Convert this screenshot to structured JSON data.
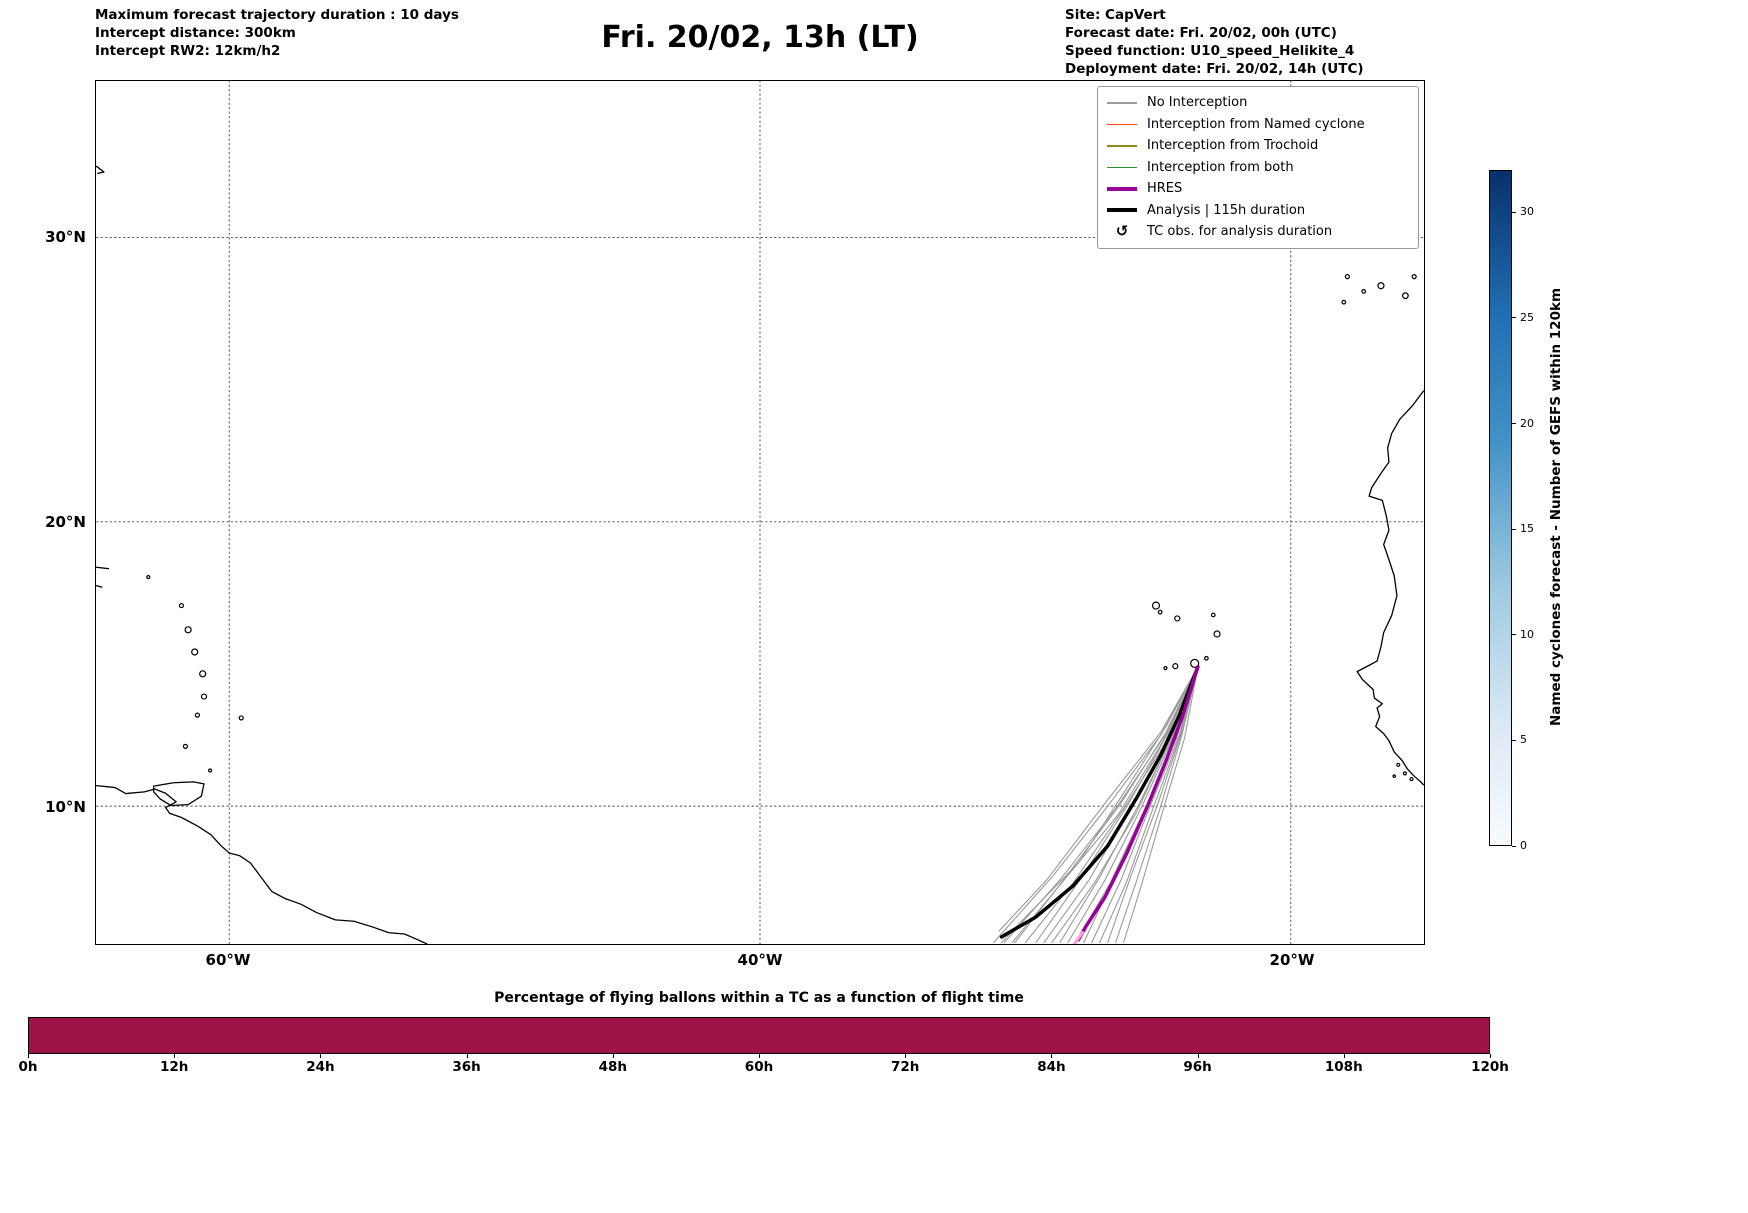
{
  "header": {
    "left_lines": [
      "Maximum forecast trajectory duration : 10 days",
      "Intercept distance: 300km",
      "Intercept RW2: 12km/h2"
    ],
    "title": "Fri. 20/02, 13h (LT)",
    "right_lines": [
      "Site: CapVert",
      "Forecast date: Fri. 20/02, 00h (UTC)",
      "Speed function: U10_speed_Helikite_4",
      "Deployment date: Fri. 20/02, 14h (UTC)"
    ]
  },
  "map": {
    "lat_labels": [
      "30°N",
      "20°N",
      "10°N"
    ],
    "lon_labels": [
      "60°W",
      "40°W",
      "20°W"
    ],
    "legend": [
      {
        "label": "No Interception",
        "color": "#9a9a9a",
        "lw": 1.5
      },
      {
        "label": "Interception from Named cyclone",
        "color": "#ff4500",
        "lw": 1.5
      },
      {
        "label": "Interception from Trochoid",
        "color": "#8a8a1e",
        "lw": 1.5
      },
      {
        "label": "Interception from both",
        "color": "#2e8b2e",
        "lw": 1.5
      },
      {
        "label": "HRES",
        "color": "#990099",
        "lw": 4
      },
      {
        "label": "Analysis | 115h duration",
        "color": "#000000",
        "lw": 4
      },
      {
        "label": "TC obs. for analysis duration",
        "symbol": "↺"
      }
    ],
    "coastlines": [
      [
        [
          -65,
          10.72
        ],
        [
          -64.3,
          10.65
        ],
        [
          -63.9,
          10.44
        ],
        [
          -63.2,
          10.5
        ],
        [
          -62.8,
          10.6
        ],
        [
          -62.4,
          10.45
        ],
        [
          -62.0,
          10.15
        ],
        [
          -62.4,
          9.95
        ],
        [
          -62.25,
          9.75
        ],
        [
          -61.8,
          9.6
        ],
        [
          -61.2,
          9.3
        ],
        [
          -60.7,
          9.0
        ],
        [
          -60.3,
          8.6
        ],
        [
          -60.0,
          8.35
        ],
        [
          -59.6,
          8.25
        ],
        [
          -59.2,
          8.0
        ],
        [
          -58.8,
          7.5
        ],
        [
          -58.4,
          7.0
        ],
        [
          -57.9,
          6.75
        ],
        [
          -57.3,
          6.55
        ],
        [
          -56.7,
          6.25
        ],
        [
          -56.0,
          6.0
        ],
        [
          -55.3,
          5.95
        ],
        [
          -54.6,
          5.75
        ],
        [
          -54.0,
          5.55
        ],
        [
          -53.4,
          5.5
        ],
        [
          -52.9,
          5.3
        ],
        [
          -52.55,
          5.15
        ]
      ],
      [
        [
          -62.85,
          10.7
        ],
        [
          -62.1,
          10.82
        ],
        [
          -61.35,
          10.85
        ],
        [
          -60.95,
          10.78
        ],
        [
          -61.05,
          10.35
        ],
        [
          -61.55,
          10.05
        ],
        [
          -62.2,
          10.02
        ],
        [
          -62.6,
          10.25
        ],
        [
          -62.85,
          10.5
        ],
        [
          -62.85,
          10.7
        ]
      ],
      [
        [
          -15.0,
          24.6
        ],
        [
          -15.4,
          24.1
        ],
        [
          -15.9,
          23.6
        ],
        [
          -16.2,
          23.1
        ],
        [
          -16.35,
          22.6
        ],
        [
          -16.3,
          22.1
        ],
        [
          -16.6,
          21.7
        ],
        [
          -16.95,
          21.2
        ],
        [
          -17.05,
          20.9
        ],
        [
          -16.55,
          20.75
        ],
        [
          -16.4,
          20.2
        ],
        [
          -16.3,
          19.7
        ],
        [
          -16.5,
          19.2
        ],
        [
          -16.35,
          18.8
        ],
        [
          -16.1,
          18.1
        ],
        [
          -16.0,
          17.4
        ],
        [
          -16.2,
          16.7
        ],
        [
          -16.5,
          16.1
        ],
        [
          -16.6,
          15.6
        ],
        [
          -16.75,
          15.1
        ],
        [
          -17.15,
          14.9
        ],
        [
          -17.5,
          14.73
        ],
        [
          -17.3,
          14.45
        ],
        [
          -16.9,
          14.1
        ],
        [
          -16.85,
          13.8
        ],
        [
          -16.55,
          13.6
        ],
        [
          -16.75,
          13.45
        ],
        [
          -16.65,
          13.15
        ],
        [
          -16.8,
          12.8
        ],
        [
          -16.5,
          12.55
        ],
        [
          -16.3,
          12.3
        ],
        [
          -16.1,
          11.9
        ],
        [
          -15.8,
          11.6
        ],
        [
          -15.6,
          11.3
        ],
        [
          -15.35,
          11.05
        ],
        [
          -15.1,
          10.85
        ],
        [
          -15.0,
          10.75
        ]
      ],
      [
        [
          -65,
          32.5
        ],
        [
          -64.72,
          32.3
        ],
        [
          -64.95,
          32.25
        ]
      ],
      [
        [
          -65,
          18.4
        ],
        [
          -64.55,
          18.35
        ]
      ],
      [
        [
          -65,
          17.75
        ],
        [
          -64.8,
          17.7
        ]
      ]
    ],
    "islands": [
      [
        -63.05,
        18.05,
        1.5
      ],
      [
        -61.8,
        17.05,
        2
      ],
      [
        -61.55,
        16.2,
        3
      ],
      [
        -61.3,
        15.42,
        3
      ],
      [
        -61.0,
        14.65,
        3
      ],
      [
        -60.95,
        13.85,
        2.5
      ],
      [
        -61.2,
        13.2,
        2
      ],
      [
        -61.65,
        12.1,
        2
      ],
      [
        -59.55,
        13.1,
        2
      ],
      [
        -60.72,
        11.25,
        1.5
      ],
      [
        -25.08,
        17.05,
        3.5
      ],
      [
        -24.92,
        16.82,
        1.8
      ],
      [
        -24.28,
        16.6,
        2.5
      ],
      [
        -22.92,
        16.72,
        1.8
      ],
      [
        -22.78,
        16.05,
        3
      ],
      [
        -23.18,
        15.2,
        1.8
      ],
      [
        -23.62,
        15.02,
        4
      ],
      [
        -24.35,
        14.92,
        2.5
      ],
      [
        -24.72,
        14.85,
        1.5
      ],
      [
        -18.0,
        27.72,
        1.8
      ],
      [
        -17.87,
        28.62,
        2
      ],
      [
        -17.25,
        28.1,
        1.8
      ],
      [
        -16.6,
        28.3,
        3
      ],
      [
        -15.68,
        27.95,
        2.8
      ],
      [
        -15.35,
        28.62,
        2
      ],
      [
        -15.95,
        11.45,
        1.5
      ],
      [
        -15.7,
        11.15,
        1.5
      ],
      [
        -15.45,
        10.95,
        1.5
      ],
      [
        -16.1,
        11.05,
        1.2
      ]
    ]
  },
  "colorbar": {
    "label": "Named cyclones forecast - Number of GEFS within 120km",
    "ticks": [
      0,
      5,
      10,
      15,
      20,
      25,
      30
    ],
    "vmax": 32,
    "color_top": "#08306b",
    "color_bottom": "#f7fbff"
  },
  "bottom_chart": {
    "title": "Percentage of flying ballons within a TC as a function of flight time",
    "x_ticks": [
      "0h",
      "12h",
      "24h",
      "36h",
      "48h",
      "60h",
      "72h",
      "84h",
      "96h",
      "108h",
      "120h"
    ],
    "bar_color": "#a01349",
    "value_percent": 100
  },
  "chart_data": [
    {
      "type": "line",
      "name": "balloon-trajectory-map",
      "lon_range": [
        -65,
        -15
      ],
      "lat_range": [
        5.15,
        35.5
      ],
      "grid_lons": [
        -60,
        -40,
        -20
      ],
      "grid_lats": [
        10,
        20,
        30
      ],
      "deployment_site_lonlat": [
        -23.5,
        14.9
      ],
      "series": [
        {
          "name": "No Interception",
          "color": "#9a9a9a",
          "width": 1.1,
          "trajectories": [
            [
              [
                -23.5,
                14.9
              ],
              [
                -24.9,
                12.5
              ],
              [
                -26.9,
                10.0
              ],
              [
                -29.0,
                7.5
              ],
              [
                -31.2,
                5.2
              ]
            ],
            [
              [
                -23.5,
                14.9
              ],
              [
                -24.8,
                12.4
              ],
              [
                -26.6,
                9.9
              ],
              [
                -28.7,
                7.4
              ],
              [
                -30.8,
                5.2
              ]
            ],
            [
              [
                -23.5,
                14.9
              ],
              [
                -24.7,
                12.6
              ],
              [
                -26.4,
                10.1
              ],
              [
                -28.4,
                7.6
              ],
              [
                -30.4,
                5.2
              ]
            ],
            [
              [
                -23.5,
                14.9
              ],
              [
                -24.6,
                12.4
              ],
              [
                -26.3,
                9.9
              ],
              [
                -28.2,
                7.3
              ],
              [
                -30.0,
                5.2
              ]
            ],
            [
              [
                -23.5,
                14.9
              ],
              [
                -24.6,
                12.6
              ],
              [
                -26.1,
                10.1
              ],
              [
                -27.8,
                7.6
              ],
              [
                -29.6,
                5.2
              ]
            ],
            [
              [
                -23.5,
                14.9
              ],
              [
                -24.5,
                12.5
              ],
              [
                -26.0,
                10.0
              ],
              [
                -27.6,
                7.4
              ],
              [
                -29.3,
                5.2
              ]
            ],
            [
              [
                -23.5,
                14.9
              ],
              [
                -24.5,
                12.4
              ],
              [
                -25.8,
                9.8
              ],
              [
                -27.4,
                7.3
              ],
              [
                -29.0,
                5.2
              ]
            ],
            [
              [
                -23.5,
                14.9
              ],
              [
                -24.4,
                12.6
              ],
              [
                -25.7,
                10.1
              ],
              [
                -27.2,
                7.5
              ],
              [
                -28.7,
                5.2
              ]
            ],
            [
              [
                -23.5,
                14.9
              ],
              [
                -24.4,
                12.5
              ],
              [
                -25.6,
                10.0
              ],
              [
                -27.0,
                7.4
              ],
              [
                -28.4,
                5.2
              ]
            ],
            [
              [
                -23.5,
                14.9
              ],
              [
                -24.3,
                12.4
              ],
              [
                -25.5,
                9.9
              ],
              [
                -26.8,
                7.3
              ],
              [
                -28.1,
                5.2
              ]
            ],
            [
              [
                -23.5,
                14.9
              ],
              [
                -24.3,
                12.6
              ],
              [
                -25.4,
                10.1
              ],
              [
                -26.6,
                7.6
              ],
              [
                -27.8,
                5.2
              ]
            ],
            [
              [
                -23.5,
                14.9
              ],
              [
                -24.2,
                12.5
              ],
              [
                -25.3,
                10.0
              ],
              [
                -26.4,
                7.4
              ],
              [
                -27.5,
                5.2
              ]
            ],
            [
              [
                -23.5,
                14.9
              ],
              [
                -24.2,
                12.4
              ],
              [
                -25.2,
                9.9
              ],
              [
                -26.2,
                7.3
              ],
              [
                -27.2,
                5.2
              ]
            ],
            [
              [
                -23.5,
                14.9
              ],
              [
                -24.1,
                12.6
              ],
              [
                -25.0,
                10.1
              ],
              [
                -26.0,
                7.6
              ],
              [
                -26.9,
                5.2
              ]
            ],
            [
              [
                -23.5,
                14.9
              ],
              [
                -24.1,
                12.5
              ],
              [
                -24.9,
                10.0
              ],
              [
                -25.8,
                7.4
              ],
              [
                -26.6,
                5.2
              ]
            ],
            [
              [
                -23.5,
                14.9
              ],
              [
                -24.0,
                12.4
              ],
              [
                -24.8,
                9.9
              ],
              [
                -25.6,
                7.3
              ],
              [
                -26.3,
                5.2
              ]
            ],
            [
              [
                -23.5,
                14.9
              ],
              [
                -24.9,
                12.6
              ],
              [
                -27.0,
                10.1
              ],
              [
                -29.2,
                7.4
              ],
              [
                -31.0,
                5.6
              ]
            ],
            [
              [
                -23.5,
                14.9
              ],
              [
                -24.8,
                12.3
              ],
              [
                -26.5,
                9.7
              ],
              [
                -28.9,
                7.0
              ],
              [
                -30.5,
                5.2
              ]
            ],
            [
              [
                -23.5,
                14.9
              ],
              [
                -24.7,
                12.8
              ],
              [
                -26.2,
                10.6
              ],
              [
                -28.0,
                8.0
              ],
              [
                -30.2,
                5.9
              ],
              [
                -30.9,
                5.2
              ]
            ]
          ]
        },
        {
          "name": "Analysis | 115h duration",
          "color": "#000000",
          "width": 3.5,
          "trajectories": [
            [
              [
                -23.5,
                14.9
              ],
              [
                -24.2,
                13.2
              ],
              [
                -24.9,
                11.8
              ],
              [
                -25.8,
                10.3
              ],
              [
                -26.9,
                8.6
              ],
              [
                -28.2,
                7.2
              ],
              [
                -29.6,
                6.1
              ],
              [
                -30.9,
                5.4
              ]
            ]
          ]
        },
        {
          "name": "HRES",
          "color": "#990099",
          "width": 3.5,
          "trajectories": [
            [
              [
                -23.5,
                14.9
              ],
              [
                -24.1,
                13.1
              ],
              [
                -24.7,
                11.6
              ],
              [
                -25.4,
                10.0
              ],
              [
                -26.2,
                8.3
              ],
              [
                -27.0,
                6.8
              ],
              [
                -27.7,
                5.8
              ],
              [
                -28.0,
                5.3
              ]
            ]
          ]
        },
        {
          "name": "HRES deployment tail",
          "color": "#f5a0dc",
          "width": 3,
          "trajectories": [
            [
              [
                -27.85,
                5.55
              ],
              [
                -28.15,
                5.15
              ]
            ]
          ]
        }
      ]
    },
    {
      "type": "bar",
      "name": "percent-in-tc",
      "title": "Percentage of flying ballons within a TC as a function of flight time",
      "x_hours": [
        0,
        120
      ],
      "percent": [
        100,
        100
      ],
      "x_ticks": [
        "0h",
        "12h",
        "24h",
        "36h",
        "48h",
        "60h",
        "72h",
        "84h",
        "96h",
        "108h",
        "120h"
      ],
      "ylim": [
        0,
        100
      ]
    }
  ]
}
